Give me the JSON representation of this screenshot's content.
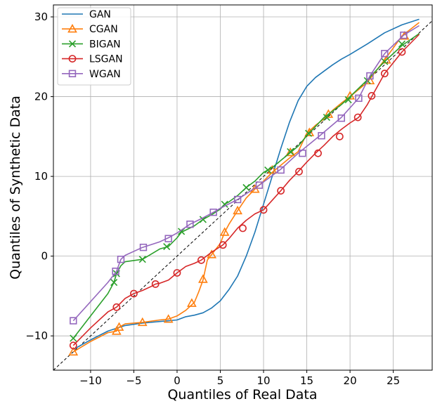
{
  "chart_data": {
    "type": "line",
    "xlabel": "Quantiles of Real Data",
    "ylabel": "Quantiles of Synthetic Data",
    "xlim": [
      -14.3,
      29.5
    ],
    "ylim": [
      -14.3,
      31.5
    ],
    "xticks": [
      -10,
      -5,
      0,
      5,
      10,
      15,
      20,
      25
    ],
    "yticks": [
      -10,
      0,
      10,
      20,
      30
    ],
    "xtick_labels": [
      "−10",
      "−5",
      "0",
      "5",
      "10",
      "15",
      "20",
      "25"
    ],
    "ytick_labels": [
      "−10",
      "0",
      "10",
      "20",
      "30"
    ],
    "grid": true,
    "legend_position": "top-left",
    "reference_line": {
      "style": "dashed",
      "color": "#000000",
      "x": [
        -14.3,
        29.5
      ],
      "y": [
        -14.3,
        29.5
      ]
    },
    "series": [
      {
        "name": "GAN",
        "color": "#1f77b4",
        "marker": "none",
        "x": [
          -12,
          -10,
          -8,
          -6,
          -4,
          -2,
          0,
          1,
          2,
          3,
          4,
          5,
          6,
          7,
          8,
          9,
          10,
          11,
          12,
          13,
          14,
          15,
          16,
          17,
          18,
          19,
          20,
          22,
          24,
          26,
          28
        ],
        "y": [
          -11.7,
          -10.5,
          -9.4,
          -8.7,
          -8.4,
          -8.2,
          -8.0,
          -7.6,
          -7.4,
          -7.1,
          -6.5,
          -5.6,
          -4.2,
          -2.5,
          0.0,
          3.0,
          6.5,
          10.0,
          13.5,
          16.8,
          19.5,
          21.3,
          22.4,
          23.2,
          24.0,
          24.7,
          25.3,
          26.6,
          28.0,
          29.0,
          29.7
        ]
      },
      {
        "name": "CGAN",
        "color": "#ff7f0e",
        "marker": "triangle",
        "x": [
          -12,
          -10,
          -8,
          -7,
          -6.7,
          -6,
          -4,
          -2,
          -1,
          0,
          1,
          2,
          2.5,
          3,
          3.5,
          4,
          5,
          5.5,
          6,
          7,
          8,
          9,
          10,
          11,
          12,
          13,
          14,
          15,
          16,
          17,
          18,
          19,
          20,
          22,
          24,
          26,
          28
        ],
        "y": [
          -12.0,
          -10.7,
          -9.6,
          -9.4,
          -8.9,
          -8.5,
          -8.3,
          -8.0,
          -7.9,
          -7.5,
          -6.8,
          -5.8,
          -4.5,
          -3.0,
          -0.5,
          0.2,
          1.6,
          3.0,
          4.0,
          5.7,
          7.3,
          8.4,
          9.4,
          10.5,
          11.4,
          12.3,
          13.1,
          15.4,
          16.4,
          17.2,
          18.3,
          19.2,
          20.0,
          21.8,
          24.6,
          27.6,
          29.3
        ]
      },
      {
        "name": "BIGAN",
        "color": "#2ca02c",
        "marker": "x",
        "x": [
          -12,
          -10,
          -8,
          -7.3,
          -7,
          -6.5,
          -6,
          -4,
          -2,
          -1,
          0,
          0.5,
          2,
          3,
          4,
          5,
          5.5,
          6,
          7,
          8,
          9,
          10,
          11,
          12,
          13,
          14,
          15,
          17,
          19,
          20,
          22,
          24,
          26,
          28
        ],
        "y": [
          -10.3,
          -7.5,
          -4.7,
          -3.3,
          -2.2,
          -1.2,
          -0.7,
          -0.4,
          0.9,
          1.2,
          2.3,
          3.0,
          3.8,
          4.6,
          5.2,
          5.9,
          6.5,
          6.8,
          7.6,
          8.6,
          9.4,
          10.5,
          11.1,
          12.0,
          12.9,
          13.8,
          15.1,
          17.4,
          19.0,
          20.0,
          22.1,
          24.4,
          26.4,
          27.9
        ]
      },
      {
        "name": "LSGAN",
        "color": "#d62728",
        "marker": "circle",
        "x": [
          -12,
          -10,
          -8,
          -7,
          -6,
          -5,
          -4,
          -3,
          -2.5,
          -2,
          -1,
          0,
          1,
          2,
          2.8,
          4,
          5.3,
          6,
          7,
          8,
          9,
          10,
          11,
          12,
          13,
          14,
          15,
          16,
          17,
          18,
          19,
          20,
          21,
          22,
          24,
          26,
          28
        ],
        "y": [
          -11.2,
          -9.0,
          -7.0,
          -6.4,
          -5.3,
          -4.7,
          -4.3,
          -3.8,
          -3.5,
          -3.4,
          -3.0,
          -2.1,
          -1.3,
          -0.9,
          -0.5,
          0.5,
          1.4,
          2.2,
          3.5,
          4.5,
          5.3,
          5.8,
          7.0,
          8.2,
          9.5,
          10.6,
          11.8,
          12.9,
          13.9,
          15.0,
          15.9,
          16.7,
          17.4,
          19.0,
          22.9,
          25.6,
          27.8
        ]
      },
      {
        "name": "WGAN",
        "color": "#9467bd",
        "marker": "square",
        "x": [
          -12,
          -10,
          -8,
          -7,
          -6.5,
          -6,
          -4,
          -2,
          -1,
          0,
          1.5,
          3,
          4.2,
          5,
          7,
          9.5,
          12,
          14,
          16.5,
          19,
          21,
          22.3,
          24,
          26.2,
          28
        ],
        "y": [
          -8.1,
          -5.7,
          -3.3,
          -1.9,
          -0.4,
          0.1,
          1.1,
          1.8,
          2.3,
          2.9,
          4.0,
          4.8,
          5.5,
          6.0,
          7.1,
          8.9,
          10.9,
          12.9,
          15.1,
          17.4,
          19.8,
          22.6,
          25.4,
          27.7,
          28.9
        ]
      }
    ],
    "marker_points": {
      "CGAN": [
        [
          -12,
          -12.0
        ],
        [
          -7,
          -9.4
        ],
        [
          -6.7,
          -8.9
        ],
        [
          -4,
          -8.3
        ],
        [
          -1,
          -7.9
        ],
        [
          1.7,
          -5.9
        ],
        [
          3,
          -2.9
        ],
        [
          4,
          0.2
        ],
        [
          5.5,
          3.0
        ],
        [
          7,
          5.7
        ],
        [
          9,
          8.4
        ],
        [
          11,
          10.8
        ],
        [
          13.1,
          13.0
        ],
        [
          15.3,
          15.5
        ],
        [
          17.5,
          17.8
        ],
        [
          20,
          20.1
        ],
        [
          22.3,
          22.0
        ],
        [
          24.2,
          24.6
        ],
        [
          26.3,
          27.6
        ]
      ],
      "BIGAN": [
        [
          -12,
          -10.3
        ],
        [
          -7.3,
          -3.3
        ],
        [
          -7,
          -2.2
        ],
        [
          -4,
          -0.4
        ],
        [
          -1.2,
          1.2
        ],
        [
          0.5,
          3.1
        ],
        [
          3,
          4.6
        ],
        [
          5.5,
          6.5
        ],
        [
          8,
          8.6
        ],
        [
          10.5,
          10.8
        ],
        [
          13.1,
          13.1
        ],
        [
          15.2,
          15.4
        ],
        [
          17.3,
          17.4
        ],
        [
          19.8,
          19.6
        ],
        [
          22,
          22.0
        ],
        [
          24,
          24.4
        ],
        [
          26,
          26.6
        ]
      ],
      "LSGAN": [
        [
          -12,
          -11.2
        ],
        [
          -7,
          -6.4
        ],
        [
          -5,
          -4.7
        ],
        [
          -2.5,
          -3.5
        ],
        [
          0,
          -2.1
        ],
        [
          2.8,
          -0.5
        ],
        [
          5.3,
          1.4
        ],
        [
          7.6,
          3.5
        ],
        [
          10,
          5.8
        ],
        [
          12,
          8.2
        ],
        [
          14.1,
          10.6
        ],
        [
          16.3,
          12.9
        ],
        [
          18.8,
          15.0
        ],
        [
          20.9,
          17.4
        ],
        [
          22.5,
          20.1
        ],
        [
          24,
          22.9
        ],
        [
          26,
          25.6
        ]
      ],
      "WGAN": [
        [
          -12,
          -8.1
        ],
        [
          -7.1,
          -1.9
        ],
        [
          -6.5,
          -0.4
        ],
        [
          -3.9,
          1.1
        ],
        [
          -1,
          2.2
        ],
        [
          1.5,
          4.0
        ],
        [
          4.2,
          5.5
        ],
        [
          7,
          7.1
        ],
        [
          9.5,
          8.9
        ],
        [
          12,
          10.8
        ],
        [
          14.5,
          12.9
        ],
        [
          16.7,
          15.1
        ],
        [
          19,
          17.3
        ],
        [
          21,
          19.8
        ],
        [
          22.3,
          22.6
        ],
        [
          24,
          25.4
        ],
        [
          26.2,
          27.7
        ]
      ]
    },
    "legend": [
      "GAN",
      "CGAN",
      "BIGAN",
      "LSGAN",
      "WGAN"
    ]
  }
}
